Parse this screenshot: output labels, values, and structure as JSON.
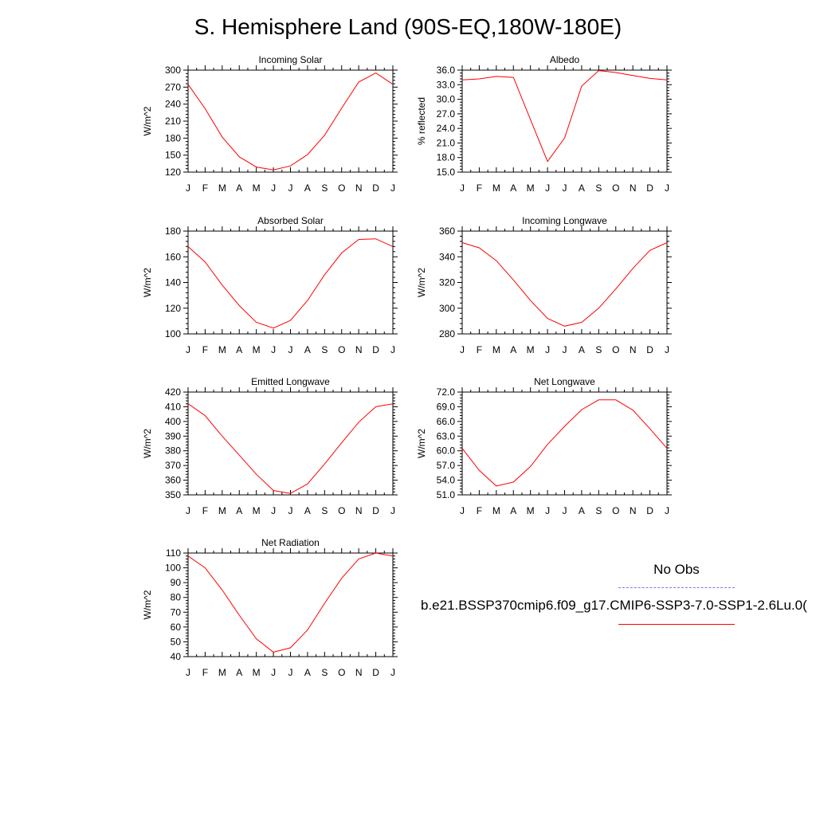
{
  "title": "S. Hemisphere Land (90S-EQ,180W-180E)",
  "colors": {
    "model_line": "#ff0000",
    "obs_line": "#7878ff",
    "axes": "#000000"
  },
  "legend": {
    "obs_label": "No Obs",
    "model_label": "b.e21.BSSP370cmip6.f09_g17.CMIP6-SSP3-7.0-SSP1-2.6Lu.0("
  },
  "chart_data": [
    {
      "type": "line",
      "title": "Incoming Solar",
      "ylabel": "W/m^2",
      "x": [
        "J",
        "F",
        "M",
        "A",
        "M",
        "J",
        "J",
        "A",
        "S",
        "O",
        "N",
        "D",
        "J"
      ],
      "ylim": [
        120,
        300
      ],
      "yticks": [
        "120",
        "150",
        "180",
        "210",
        "240",
        "270",
        "300"
      ],
      "series": [
        {
          "values": [
            275,
            232,
            182,
            147,
            129,
            124,
            131,
            151,
            185,
            233,
            279,
            295,
            275
          ]
        }
      ]
    },
    {
      "type": "line",
      "title": "Albedo",
      "ylabel": "% reflected",
      "x": [
        "J",
        "F",
        "M",
        "A",
        "M",
        "J",
        "J",
        "A",
        "S",
        "O",
        "N",
        "D",
        "J"
      ],
      "ylim": [
        15,
        36
      ],
      "yticks": [
        "15.0",
        "18.0",
        "21.0",
        "24.0",
        "27.0",
        "30.0",
        "33.0",
        "36.0"
      ],
      "series": [
        {
          "values": [
            34.0,
            34.2,
            34.7,
            34.5,
            25.8,
            17.2,
            22.0,
            32.7,
            35.9,
            35.5,
            34.9,
            34.3,
            34.0
          ]
        }
      ]
    },
    {
      "type": "line",
      "title": "Absorbed Solar",
      "ylabel": "W/m^2",
      "x": [
        "J",
        "F",
        "M",
        "A",
        "M",
        "J",
        "J",
        "A",
        "S",
        "O",
        "N",
        "D",
        "J"
      ],
      "ylim": [
        100,
        180
      ],
      "yticks": [
        "100",
        "120",
        "140",
        "160",
        "180"
      ],
      "series": [
        {
          "values": [
            168,
            156,
            138,
            122,
            109,
            104.5,
            110.5,
            126,
            146,
            163,
            173.5,
            174,
            168
          ]
        }
      ]
    },
    {
      "type": "line",
      "title": "Incoming Longwave",
      "ylabel": "W/m^2",
      "x": [
        "J",
        "F",
        "M",
        "A",
        "M",
        "J",
        "J",
        "A",
        "S",
        "O",
        "N",
        "D",
        "J"
      ],
      "ylim": [
        280,
        360
      ],
      "yticks": [
        "280",
        "300",
        "320",
        "340",
        "360"
      ],
      "series": [
        {
          "values": [
            351,
            347,
            337,
            322,
            306,
            292,
            286,
            289,
            300,
            315,
            331,
            345,
            351
          ]
        }
      ]
    },
    {
      "type": "line",
      "title": "Emitted Longwave",
      "ylabel": "W/m^2",
      "x": [
        "J",
        "F",
        "M",
        "A",
        "M",
        "J",
        "J",
        "A",
        "S",
        "O",
        "N",
        "D",
        "J"
      ],
      "ylim": [
        350,
        420
      ],
      "yticks": [
        "350",
        "360",
        "370",
        "380",
        "390",
        "400",
        "410",
        "420"
      ],
      "series": [
        {
          "values": [
            412,
            404,
            390,
            377,
            364,
            353,
            351,
            357.5,
            371,
            385.5,
            399.5,
            410,
            412
          ]
        }
      ]
    },
    {
      "type": "line",
      "title": "Net Longwave",
      "ylabel": "W/m^2",
      "x": [
        "J",
        "F",
        "M",
        "A",
        "M",
        "J",
        "J",
        "A",
        "S",
        "O",
        "N",
        "D",
        "J"
      ],
      "ylim": [
        51,
        72
      ],
      "yticks": [
        "51.0",
        "54.0",
        "57.0",
        "60.0",
        "63.0",
        "66.0",
        "69.0",
        "72.0"
      ],
      "series": [
        {
          "values": [
            60.5,
            56.0,
            52.8,
            53.6,
            56.8,
            61.3,
            65.0,
            68.4,
            70.4,
            70.4,
            68.3,
            64.5,
            60.5
          ]
        }
      ]
    },
    {
      "type": "line",
      "title": "Net Radiation",
      "ylabel": "W/m^2",
      "x": [
        "J",
        "F",
        "M",
        "A",
        "M",
        "J",
        "J",
        "A",
        "S",
        "O",
        "N",
        "D",
        "J"
      ],
      "ylim": [
        40,
        110
      ],
      "yticks": [
        "40",
        "50",
        "60",
        "70",
        "80",
        "90",
        "100",
        "110"
      ],
      "series": [
        {
          "values": [
            108,
            100,
            85,
            68,
            52,
            43,
            46,
            58,
            76,
            93,
            106,
            110,
            108
          ]
        }
      ]
    }
  ]
}
